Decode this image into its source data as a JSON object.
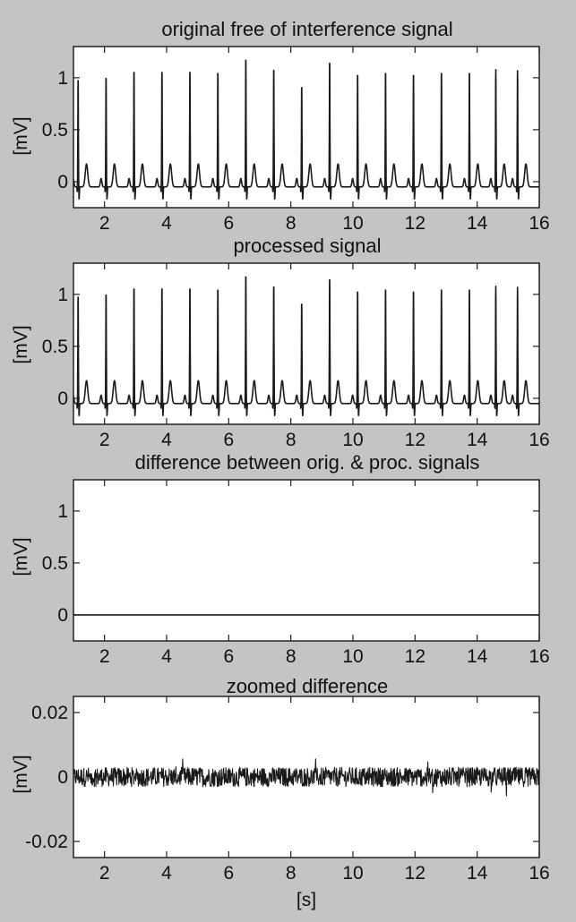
{
  "chart_data": [
    {
      "type": "line",
      "title": "original free of interference signal",
      "ylabel": "[mV]",
      "xlabel": "",
      "xlim": [
        1,
        16
      ],
      "ylim": [
        -0.25,
        1.3
      ],
      "xticks": [
        2,
        4,
        6,
        8,
        10,
        12,
        14,
        16
      ],
      "yticks": [
        0,
        0.5,
        1
      ],
      "ytick_labels": [
        "0",
        "0.5",
        "1"
      ],
      "series": [
        {
          "kind": "ecg",
          "baseline": -0.05,
          "beat_times": [
            1.15,
            2.05,
            2.95,
            3.85,
            4.75,
            5.65,
            6.55,
            7.45,
            8.35,
            9.25,
            10.15,
            11.05,
            11.95,
            12.85,
            13.75,
            14.6,
            15.3
          ],
          "r_peaks": [
            1.05,
            1.07,
            1.13,
            1.13,
            1.13,
            1.12,
            1.25,
            1.15,
            0.98,
            1.22,
            1.1,
            1.12,
            1.1,
            1.12,
            1.12,
            1.13,
            1.12
          ]
        }
      ]
    },
    {
      "type": "line",
      "title": "processed signal",
      "ylabel": "[mV]",
      "xlabel": "",
      "xlim": [
        1,
        16
      ],
      "ylim": [
        -0.25,
        1.3
      ],
      "xticks": [
        2,
        4,
        6,
        8,
        10,
        12,
        14,
        16
      ],
      "yticks": [
        0,
        0.5,
        1
      ],
      "ytick_labels": [
        "0",
        "0.5",
        "1"
      ],
      "series": [
        {
          "kind": "ecg",
          "baseline": -0.05,
          "beat_times": [
            1.15,
            2.05,
            2.95,
            3.85,
            4.75,
            5.65,
            6.55,
            7.45,
            8.35,
            9.25,
            10.15,
            11.05,
            11.95,
            12.85,
            13.75,
            14.6,
            15.3
          ],
          "r_peaks": [
            1.05,
            1.07,
            1.13,
            1.13,
            1.13,
            1.12,
            1.25,
            1.15,
            0.98,
            1.22,
            1.1,
            1.12,
            1.1,
            1.12,
            1.12,
            1.13,
            1.12
          ]
        }
      ]
    },
    {
      "type": "line",
      "title": "difference between orig. & proc. signals",
      "ylabel": "[mV]",
      "xlabel": "",
      "xlim": [
        1,
        16
      ],
      "ylim": [
        -0.25,
        1.3
      ],
      "xticks": [
        2,
        4,
        6,
        8,
        10,
        12,
        14,
        16
      ],
      "yticks": [
        0,
        0.5,
        1
      ],
      "ytick_labels": [
        "0",
        "0.5",
        "1"
      ],
      "series": [
        {
          "kind": "flat",
          "value": 0
        }
      ]
    },
    {
      "type": "line",
      "title": "zoomed difference",
      "ylabel": "[mV]",
      "xlabel": "[s]",
      "xlim": [
        1,
        16
      ],
      "ylim": [
        -0.025,
        0.025
      ],
      "xticks": [
        2,
        4,
        6,
        8,
        10,
        12,
        14,
        16
      ],
      "yticks": [
        0.02,
        0,
        -0.02
      ],
      "ytick_labels": [
        "0.02",
        "0",
        "-0.02"
      ],
      "series": [
        {
          "kind": "noise",
          "center": 0,
          "amplitude": 0.003,
          "max_spike": 0.006
        }
      ]
    }
  ]
}
